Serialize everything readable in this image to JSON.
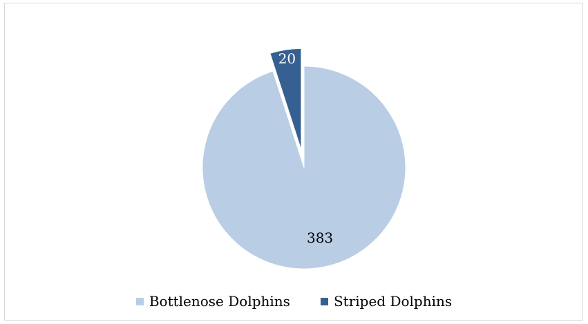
{
  "chart_data": {
    "type": "pie",
    "title": "",
    "categories": [
      "Bottlenose Dolphins",
      "Striped Dolphins"
    ],
    "values": [
      383,
      20
    ],
    "data_labels": [
      "383",
      "20"
    ],
    "colors": [
      "#b9cde5",
      "#376092"
    ],
    "label_colors": [
      "#000000",
      "#ffffff"
    ],
    "exploded": [
      false,
      true
    ],
    "legend": "bottom"
  }
}
